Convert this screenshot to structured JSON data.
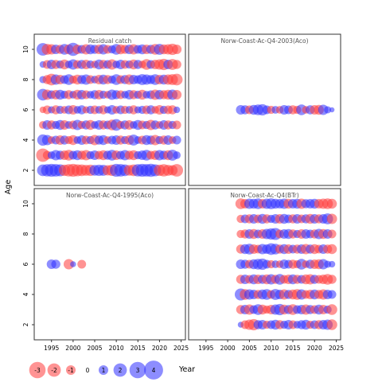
{
  "chart_data": {
    "type": "scatter",
    "xlabel": "Year",
    "ylabel": "Age",
    "x_ticks": [
      1995,
      2000,
      2005,
      2010,
      2015,
      2020,
      2025
    ],
    "y_ticks": [
      2,
      4,
      6,
      8,
      10
    ],
    "xlim": [
      1991,
      2026
    ],
    "ylim": [
      1,
      11
    ],
    "colors": {
      "positive": "#2f2fff",
      "negative": "#ff3b3b"
    },
    "legend": {
      "placement": "bottom-left",
      "values": [
        -3,
        -2,
        -1,
        0,
        1,
        2,
        3,
        4
      ],
      "labels": [
        "-3",
        "-2",
        "-1",
        "0",
        "1",
        "2",
        "3",
        "4"
      ]
    },
    "panels": [
      {
        "title": "Residual catch",
        "years": [
          1993,
          2024
        ],
        "ages": [
          2,
          10
        ],
        "residual_rows": {
          "2": [
            1.6,
            1.8,
            2.0,
            1.9,
            1.7,
            -1.5,
            -1.8,
            -2.0,
            -1.7,
            -1.6,
            -1.4,
            -1.5,
            1.3,
            1.5,
            1.4,
            -1.2,
            -1.5,
            2.0,
            1.9,
            1.6,
            -1.3,
            -1.6,
            1.8,
            2.0,
            1.9,
            2.1,
            1.7,
            -1.5,
            -1.8,
            -1.4,
            -1.2,
            -1.9
          ],
          "3": [
            -2.2,
            -0.8,
            0.6,
            1.2,
            0.9,
            -1.0,
            -1.3,
            0.8,
            1.1,
            -0.9,
            -1.2,
            0.7,
            1.0,
            -0.8,
            -1.1,
            0.9,
            1.3,
            -1.0,
            0.8,
            1.2,
            -0.9,
            -1.1,
            0.7,
            1.0,
            1.3,
            -0.8,
            -1.0,
            1.2,
            0.9,
            -1.1,
            1.4,
            0.6
          ],
          "4": [
            1.5,
            1.2,
            -0.6,
            0.8,
            -1.0,
            0.9,
            -0.7,
            -1.1,
            0.6,
            1.0,
            -0.8,
            0.7,
            -1.2,
            0.9,
            1.1,
            -0.6,
            0.8,
            1.0,
            -0.9,
            0.7,
            -1.0,
            1.4,
            0.6,
            -0.8,
            1.1,
            0.9,
            -1.2,
            0.7,
            -0.9,
            1.0,
            -0.6,
            0.8
          ],
          "5": [
            -0.6,
            1.0,
            -0.9,
            0.7,
            1.1,
            -1.0,
            0.6,
            -0.8,
            1.2,
            -0.7,
            0.9,
            -1.1,
            0.6,
            1.0,
            -0.9,
            0.8,
            -1.3,
            1.6,
            -0.7,
            0.9,
            -1.0,
            0.6,
            1.1,
            -0.8,
            0.7,
            -1.2,
            0.9,
            -0.6,
            1.0,
            -0.9,
            0.7,
            -0.8
          ],
          "6": [
            -0.4,
            -0.8,
            0.5,
            -0.9,
            0.7,
            -0.6,
            0.8,
            -1.0,
            0.6,
            0.9,
            -0.5,
            0.7,
            -0.8,
            0.6,
            -0.9,
            0.5,
            1.0,
            -0.6,
            0.8,
            -0.7,
            0.6,
            -0.9,
            0.5,
            0.7,
            -0.8,
            0.9,
            -0.6,
            -1.0,
            0.7,
            -0.8,
            -0.9,
            0.4
          ],
          "7": [
            1.6,
            -1.2,
            0.8,
            -1.0,
            1.1,
            0.7,
            -0.9,
            0.6,
            -1.1,
            1.0,
            -0.8,
            0.6,
            0.9,
            -1.0,
            0.7,
            -0.6,
            1.2,
            0.9,
            -0.8,
            0.6,
            1.0,
            -0.9,
            0.7,
            -1.1,
            0.6,
            0.8,
            -1.2,
            1.0,
            -0.9,
            -1.1,
            1.2,
            -1.0
          ],
          "8": [
            0.5,
            -0.9,
            -1.6,
            1.2,
            -1.0,
            0.8,
            1.3,
            -0.7,
            -1.1,
            0.9,
            1.2,
            -0.8,
            0.6,
            -1.0,
            1.1,
            -0.9,
            0.7,
            1.3,
            -0.8,
            0.9,
            -1.2,
            1.0,
            0.8,
            1.4,
            1.2,
            0.9,
            1.3,
            -1.0,
            1.1,
            -1.2,
            -1.4,
            -1.6
          ],
          "9": [
            0.4,
            -0.8,
            1.0,
            -0.9,
            0.7,
            -1.1,
            0.6,
            1.2,
            -0.8,
            0.9,
            -1.0,
            0.7,
            -0.6,
            1.1,
            -0.9,
            0.8,
            -1.2,
            0.6,
            1.0,
            -0.8,
            0.7,
            -1.1,
            0.9,
            -0.6,
            -1.3,
            0.8,
            -1.0,
            -1.2,
            -1.5,
            1.0,
            -1.4,
            -0.9
          ],
          "10": [
            1.9,
            -1.4,
            -1.2,
            1.0,
            -0.9,
            1.3,
            -1.1,
            2.1,
            -1.0,
            0.8,
            -1.2,
            1.1,
            0.9,
            -1.0,
            1.2,
            -0.8,
            0.7,
            1.3,
            -1.1,
            -0.9,
            1.0,
            -1.2,
            0.8,
            1.1,
            -1.0,
            0.9,
            -1.3,
            1.4,
            -1.1,
            -1.2,
            -1.5,
            -1.0
          ]
        }
      },
      {
        "title": "Norw-Coast-Ac-Q4-2003(Aco)",
        "years": [
          2003,
          2024
        ],
        "ages": [
          6,
          6
        ],
        "residual_rows": {
          "6": [
            1.0,
            0.9,
            -0.8,
            1.1,
            1.3,
            1.5,
            0.8,
            -0.7,
            0.6,
            -0.6,
            1.0,
            0.8,
            -0.9,
            -0.7,
            1.3,
            -0.6,
            0.9,
            -1.0,
            -1.1,
            1.2,
            0.5,
            0.2
          ]
        }
      },
      {
        "title": "Norw-Coast-Ac-Q4-1995(Aco)",
        "years": [
          1995,
          2002
        ],
        "ages": [
          6,
          6
        ],
        "residual_rows": {
          "6": [
            1.0,
            0.9,
            0.0,
            0.0,
            -1.2,
            0.3,
            0.0,
            -0.8
          ]
        }
      },
      {
        "title": "Norw-Coast-Ac-Q4(BTr)",
        "years": [
          2003,
          2024
        ],
        "ages": [
          2,
          10
        ],
        "residual_rows": {
          "2": [
            0.3,
            -0.8,
            -1.2,
            -1.5,
            0.9,
            1.0,
            -0.7,
            0.8,
            1.1,
            -0.9,
            0.7,
            1.0,
            -0.8,
            0.6,
            0.9,
            1.1,
            -0.7,
            0.8,
            -0.9,
            1.0,
            1.2,
            -1.3
          ],
          "3": [
            -0.9,
            1.0,
            -1.2,
            0.8,
            1.3,
            -1.1,
            -0.7,
            -1.0,
            1.2,
            1.5,
            -1.1,
            0.9,
            -1.3,
            0.8,
            1.0,
            -1.2,
            0.9,
            -0.8,
            1.1,
            -1.0,
            0.7,
            -1.3
          ],
          "4": [
            1.7,
            -1.3,
            1.2,
            1.0,
            -0.9,
            1.1,
            1.3,
            -0.8,
            1.4,
            1.0,
            -1.2,
            0.9,
            -1.1,
            -1.3,
            1.2,
            -0.8,
            -1.0,
            1.1,
            -0.9,
            -1.2,
            1.0,
            0.8
          ],
          "5": [
            -0.9,
            1.0,
            -0.8,
            1.1,
            -1.0,
            0.9,
            -1.1,
            1.2,
            -0.9,
            1.3,
            -0.8,
            -1.0,
            1.1,
            -0.9,
            0.8,
            -1.1,
            -1.2,
            0.9,
            -0.8,
            -1.0,
            -1.3,
            -0.9
          ],
          "6": [
            1.0,
            0.9,
            -0.8,
            1.1,
            1.3,
            1.5,
            0.8,
            -0.7,
            0.6,
            -0.6,
            1.0,
            0.8,
            -0.9,
            -0.7,
            1.3,
            -0.6,
            0.9,
            -1.0,
            -1.1,
            1.2,
            0.5,
            0.4
          ],
          "7": [
            -0.9,
            1.1,
            1.3,
            -1.0,
            -0.8,
            1.2,
            1.0,
            1.6,
            1.3,
            -0.9,
            1.1,
            -1.0,
            0.8,
            -0.9,
            1.0,
            -1.2,
            0.9,
            -1.1,
            -0.8,
            1.0,
            -0.9,
            -1.1
          ],
          "8": [
            -0.7,
            -0.9,
            1.0,
            -1.1,
            0.8,
            -1.0,
            1.2,
            1.5,
            1.7,
            -0.8,
            1.0,
            1.1,
            -0.9,
            0.7,
            -1.0,
            1.0,
            0.8,
            -0.9,
            1.2,
            -1.1,
            1.0,
            -0.8
          ],
          "9": [
            -0.7,
            0.8,
            -0.9,
            1.0,
            -0.8,
            1.1,
            -0.9,
            0.7,
            1.0,
            -1.0,
            1.1,
            0.8,
            -0.9,
            1.0,
            -0.8,
            0.9,
            -1.1,
            1.0,
            -0.9,
            1.0,
            1.4,
            -1.2
          ],
          "10": [
            -1.3,
            -1.0,
            1.2,
            1.1,
            1.3,
            -1.0,
            1.2,
            1.4,
            1.1,
            1.0,
            1.2,
            -1.1,
            1.0,
            1.1,
            -1.2,
            0.9,
            1.0,
            1.1,
            -1.0,
            -1.2,
            -1.3,
            -1.1
          ]
        }
      }
    ]
  }
}
